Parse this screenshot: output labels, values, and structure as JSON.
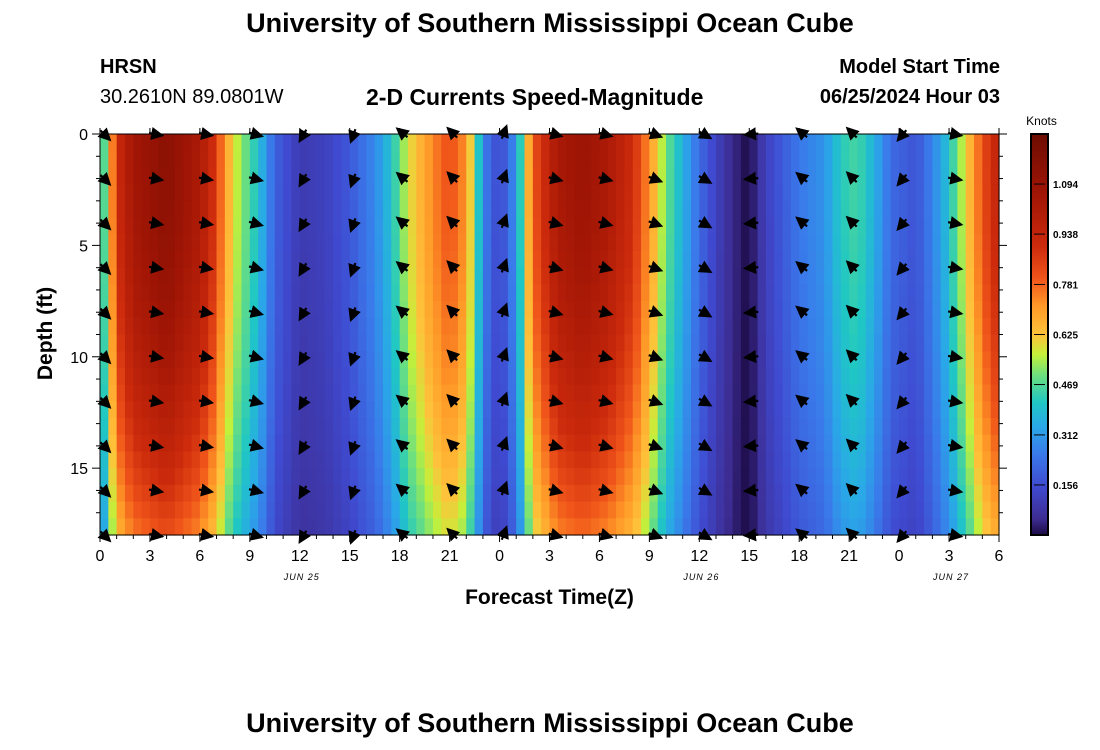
{
  "header": {
    "title": "University of Southern Mississippi Ocean Cube",
    "station": "HRSN",
    "coordinates": "30.2610N  89.0801W",
    "plot_title": "2-D Currents Speed-Magnitude",
    "model_start_label": "Model Start Time",
    "model_start_value": "06/25/2024 Hour 03"
  },
  "footer": {
    "title": "University of Southern Mississippi Ocean Cube"
  },
  "chart_data": {
    "type": "heatmap",
    "title": "2-D Currents Speed-Magnitude",
    "xlabel": "Forecast Time(Z)",
    "ylabel": "Depth (ft)",
    "x_range_hours": [
      0,
      54
    ],
    "y_range": [
      0,
      18
    ],
    "x_ticks": [
      {
        "h": 0,
        "label": "0"
      },
      {
        "h": 3,
        "label": "3"
      },
      {
        "h": 6,
        "label": "6"
      },
      {
        "h": 9,
        "label": "9"
      },
      {
        "h": 12,
        "label": "12"
      },
      {
        "h": 15,
        "label": "15"
      },
      {
        "h": 18,
        "label": "18"
      },
      {
        "h": 21,
        "label": "21"
      },
      {
        "h": 24,
        "label": "0"
      },
      {
        "h": 27,
        "label": "3"
      },
      {
        "h": 30,
        "label": "6"
      },
      {
        "h": 33,
        "label": "9"
      },
      {
        "h": 36,
        "label": "12"
      },
      {
        "h": 39,
        "label": "15"
      },
      {
        "h": 42,
        "label": "18"
      },
      {
        "h": 45,
        "label": "21"
      },
      {
        "h": 48,
        "label": "0"
      },
      {
        "h": 51,
        "label": "3"
      },
      {
        "h": 54,
        "label": "6"
      }
    ],
    "date_labels": [
      {
        "h": 12,
        "label": "JUN 25"
      },
      {
        "h": 36,
        "label": "JUN 26"
      },
      {
        "h": 51,
        "label": "JUN 27"
      }
    ],
    "y_ticks": [
      0,
      5,
      10,
      15
    ],
    "colorbar": {
      "title": "Knots",
      "min": 0,
      "max": 1.25,
      "ticks": [
        "1.094",
        "0.938",
        "0.781",
        "0.625",
        "0.469",
        "0.312",
        "0.156"
      ]
    },
    "speed_profile": {
      "hours": [
        0,
        0.5,
        1,
        2,
        4,
        6,
        7,
        7.5,
        8.3,
        9.5,
        10.5,
        12,
        13.5,
        15,
        16.5,
        17.5,
        18.5,
        20,
        21,
        22,
        22.7,
        23.3,
        24,
        25,
        25.5,
        26,
        27.5,
        29,
        30.5,
        32,
        33,
        34,
        36,
        37.5,
        38.5,
        39,
        40,
        42,
        43.5,
        44.5,
        45.5,
        46.5,
        47.5,
        49,
        50,
        51,
        52,
        53,
        54
      ],
      "speed_knots": [
        0.35,
        0.6,
        0.9,
        1.05,
        1.14,
        1.02,
        0.86,
        0.7,
        0.55,
        0.4,
        0.2,
        0.1,
        0.12,
        0.18,
        0.28,
        0.4,
        0.58,
        0.74,
        0.82,
        0.72,
        0.42,
        0.22,
        0.14,
        0.3,
        0.55,
        0.8,
        1.03,
        1.08,
        1.02,
        0.9,
        0.72,
        0.5,
        0.22,
        0.08,
        0.02,
        0.0,
        0.12,
        0.25,
        0.3,
        0.42,
        0.46,
        0.36,
        0.22,
        0.17,
        0.27,
        0.4,
        0.6,
        0.82,
        0.95
      ]
    },
    "vector_rows_ft": [
      0,
      2,
      4,
      6,
      8,
      10,
      12,
      14,
      16,
      18
    ],
    "vector_hours": [
      0,
      3,
      6,
      9,
      12,
      15,
      18,
      21,
      24,
      27,
      30,
      33,
      36,
      39,
      42,
      45,
      48,
      51
    ],
    "vector_directions_deg": [
      45,
      10,
      10,
      15,
      120,
      110,
      220,
      225,
      290,
      15,
      15,
      20,
      30,
      175,
      220,
      225,
      130,
      10
    ]
  }
}
